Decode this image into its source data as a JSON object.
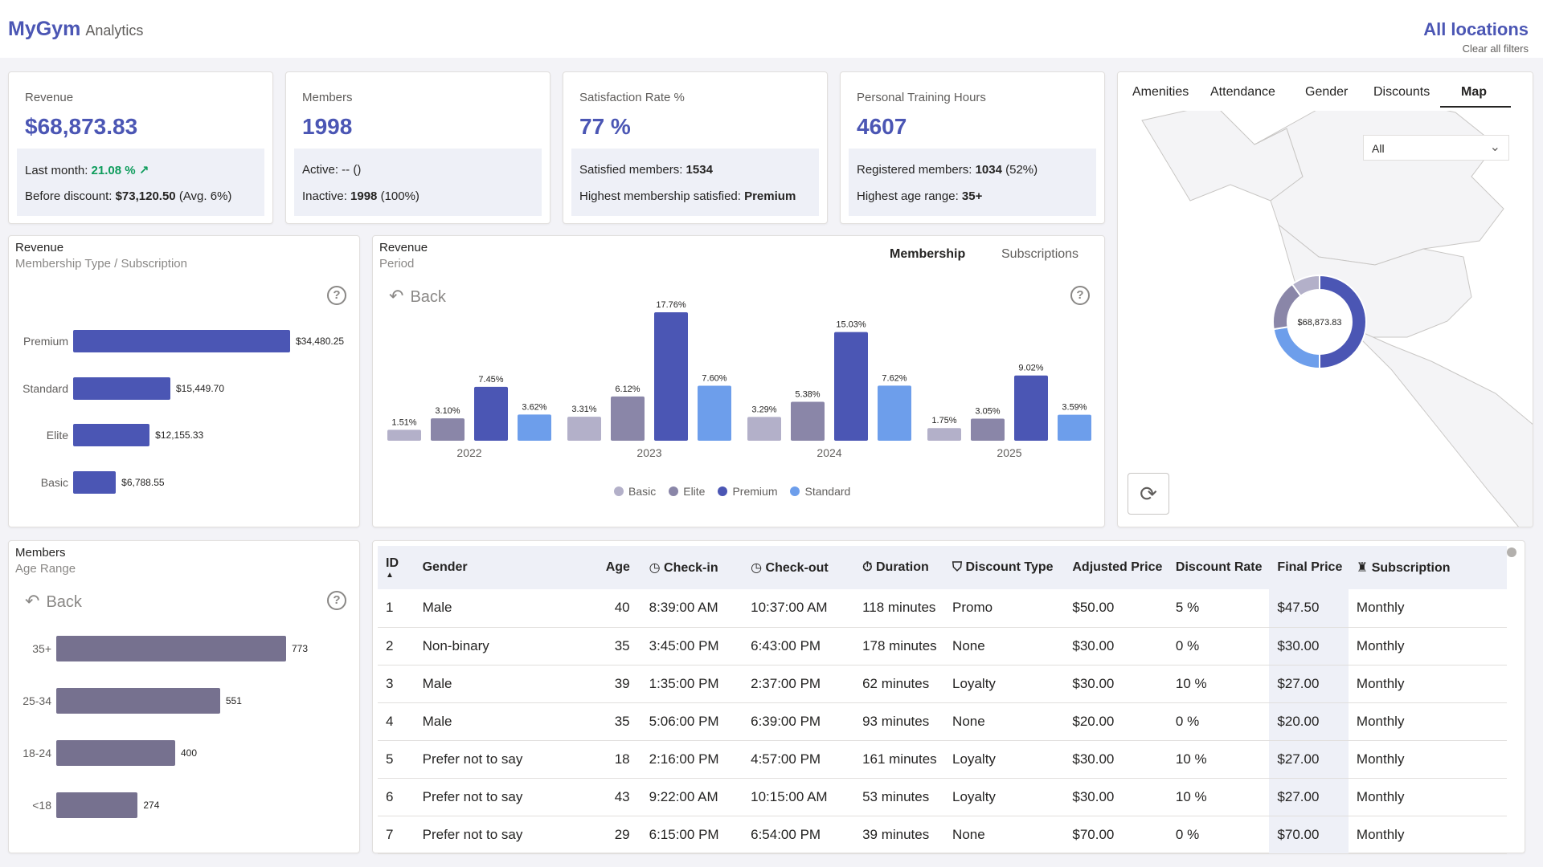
{
  "header": {
    "logo": "MyGym",
    "logo_sub": "Analytics",
    "location": "All locations",
    "clear": "Clear all filters"
  },
  "kpis": [
    {
      "label": "Revenue",
      "value": "$68,873.83",
      "l1_prefix": "Last month: ",
      "l1_value": "21.08 % ↗",
      "l2_prefix": "Before discount: ",
      "l2_value": "$73,120.50",
      "l2_suffix": " (Avg. 6%)"
    },
    {
      "label": "Members",
      "value": "1998",
      "l1_prefix": "Active: -- ()",
      "l1_value": "",
      "l2_prefix": "Inactive: ",
      "l2_value": "1998",
      "l2_suffix": " (100%)"
    },
    {
      "label": "Satisfaction Rate %",
      "value": "77 %",
      "l1_prefix": "Satisfied members: ",
      "l1_value": "1534",
      "l2_prefix": "Highest membership satisfied: ",
      "l2_value": "Premium",
      "l2_suffix": ""
    },
    {
      "label": "Personal Training Hours",
      "value": "4607",
      "l1_prefix": "Registered members: ",
      "l1_value": "1034",
      "l1_suffix": " (52%)",
      "l2_prefix": "Highest age range: ",
      "l2_value": "35+",
      "l2_suffix": ""
    }
  ],
  "rev_membership": {
    "title": "Revenue",
    "subtitle": "Membership Type / Subscription",
    "help": "?"
  },
  "rev_period": {
    "title": "Revenue",
    "subtitle": "Period",
    "back": "Back",
    "help": "?",
    "tab_membership": "Membership",
    "tab_subscriptions": "Subscriptions"
  },
  "members_age": {
    "title": "Members",
    "subtitle": "Age Range",
    "back": "Back",
    "help": "?"
  },
  "map_panel": {
    "tabs": [
      "Amenities",
      "Attendance",
      "Gender",
      "Discounts",
      "Map"
    ],
    "active_tab": "Map",
    "dropdown": "All",
    "donut_label": "$68,873.83",
    "donut_colors": [
      "#4b56b4",
      "#6d9eeb",
      "#8a86a8",
      "#b3b0c9"
    ],
    "donut_values": [
      0.5,
      0.225,
      0.175,
      0.1
    ]
  },
  "chart_data": [
    {
      "type": "bar",
      "orientation": "horizontal",
      "categories": [
        "Premium",
        "Standard",
        "Elite",
        "Basic"
      ],
      "values": [
        34480.25,
        15449.7,
        12155.33,
        6788.55
      ],
      "value_labels": [
        "$34,480.25",
        "$15,449.70",
        "$12,155.33",
        "$6,788.55"
      ],
      "color": "#4b56b4"
    },
    {
      "type": "bar",
      "categories": [
        "2022",
        "2023",
        "2024",
        "2025"
      ],
      "series": [
        {
          "name": "Basic",
          "color": "#b3b0c9",
          "values": [
            1.51,
            3.31,
            3.29,
            1.75
          ],
          "labels": [
            "1.51%",
            "3.31%",
            "3.29%",
            "1.75%"
          ]
        },
        {
          "name": "Elite",
          "color": "#8a86a8",
          "values": [
            3.1,
            6.12,
            5.38,
            3.05
          ],
          "labels": [
            "3.10%",
            "6.12%",
            "5.38%",
            "3.05%"
          ]
        },
        {
          "name": "Premium",
          "color": "#4b56b4",
          "values": [
            7.45,
            17.76,
            15.03,
            9.02
          ],
          "labels": [
            "7.45%",
            "17.76%",
            "15.03%",
            "9.02%"
          ]
        },
        {
          "name": "Standard",
          "color": "#6d9eeb",
          "values": [
            3.62,
            7.6,
            7.62,
            3.59
          ],
          "labels": [
            "3.62%",
            "7.60%",
            "7.62%",
            "3.59%"
          ]
        }
      ]
    },
    {
      "type": "bar",
      "orientation": "horizontal",
      "categories": [
        "35+",
        "25-34",
        "18-24",
        "<18"
      ],
      "values": [
        773,
        551,
        400,
        274
      ],
      "value_labels": [
        "773",
        "551",
        "400",
        "274"
      ],
      "color": "#76718f"
    }
  ],
  "table": {
    "headers": {
      "id": "ID",
      "gender": "Gender",
      "age": "Age",
      "checkin": "Check-in",
      "checkout": "Check-out",
      "duration": "Duration",
      "discount_type": "Discount Type",
      "adjusted": "Adjusted Price",
      "rate": "Discount Rate",
      "final": "Final Price",
      "subscription": "Subscription"
    },
    "rows": [
      [
        "1",
        "Male",
        "40",
        "8:39:00 AM",
        "10:37:00 AM",
        "118 minutes",
        "Promo",
        "$50.00",
        "5 %",
        "$47.50",
        "Monthly"
      ],
      [
        "2",
        "Non-binary",
        "35",
        "3:45:00 PM",
        "6:43:00 PM",
        "178 minutes",
        "None",
        "$30.00",
        "0 %",
        "$30.00",
        "Monthly"
      ],
      [
        "3",
        "Male",
        "39",
        "1:35:00 PM",
        "2:37:00 PM",
        "62 minutes",
        "Loyalty",
        "$30.00",
        "10 %",
        "$27.00",
        "Monthly"
      ],
      [
        "4",
        "Male",
        "35",
        "5:06:00 PM",
        "6:39:00 PM",
        "93 minutes",
        "None",
        "$20.00",
        "0 %",
        "$20.00",
        "Monthly"
      ],
      [
        "5",
        "Prefer not to say",
        "18",
        "2:16:00 PM",
        "4:57:00 PM",
        "161 minutes",
        "Loyalty",
        "$30.00",
        "10 %",
        "$27.00",
        "Monthly"
      ],
      [
        "6",
        "Prefer not to say",
        "43",
        "9:22:00 AM",
        "10:15:00 AM",
        "53 minutes",
        "Loyalty",
        "$30.00",
        "10 %",
        "$27.00",
        "Monthly"
      ],
      [
        "7",
        "Prefer not to say",
        "29",
        "6:15:00 PM",
        "6:54:00 PM",
        "39 minutes",
        "None",
        "$70.00",
        "0 %",
        "$70.00",
        "Monthly"
      ]
    ]
  }
}
